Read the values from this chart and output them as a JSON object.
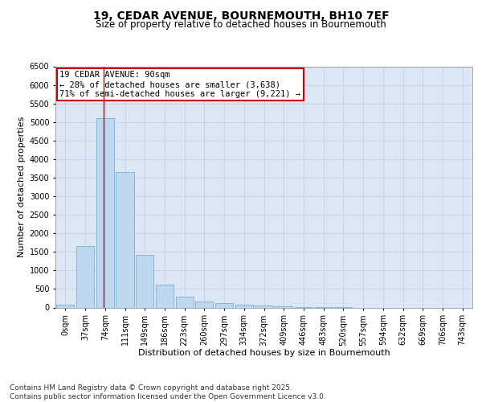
{
  "title": "19, CEDAR AVENUE, BOURNEMOUTH, BH10 7EF",
  "subtitle": "Size of property relative to detached houses in Bournemouth",
  "xlabel": "Distribution of detached houses by size in Bournemouth",
  "ylabel": "Number of detached properties",
  "bin_labels": [
    "0sqm",
    "37sqm",
    "74sqm",
    "111sqm",
    "149sqm",
    "186sqm",
    "223sqm",
    "260sqm",
    "297sqm",
    "334sqm",
    "372sqm",
    "409sqm",
    "446sqm",
    "483sqm",
    "520sqm",
    "557sqm",
    "594sqm",
    "632sqm",
    "669sqm",
    "706sqm",
    "743sqm"
  ],
  "bar_values": [
    70,
    1650,
    5100,
    3650,
    1420,
    610,
    300,
    155,
    110,
    80,
    45,
    30,
    20,
    10,
    5,
    0,
    0,
    0,
    0,
    0,
    0
  ],
  "bar_color": "#bdd7ee",
  "bar_edge_color": "#7ab0d4",
  "property_line_label": "19 CEDAR AVENUE: 90sqm",
  "annotation_line1": "← 28% of detached houses are smaller (3,638)",
  "annotation_line2": "71% of semi-detached houses are larger (9,221) →",
  "annotation_box_color": "#ffffff",
  "annotation_box_edge": "#cc0000",
  "ylim": [
    0,
    6500
  ],
  "yticks": [
    0,
    500,
    1000,
    1500,
    2000,
    2500,
    3000,
    3500,
    4000,
    4500,
    5000,
    5500,
    6000,
    6500
  ],
  "grid_color": "#c8d4e8",
  "background_color": "#dce6f5",
  "footer_line1": "Contains HM Land Registry data © Crown copyright and database right 2025.",
  "footer_line2": "Contains public sector information licensed under the Open Government Licence v3.0.",
  "title_fontsize": 10,
  "subtitle_fontsize": 8.5,
  "axis_label_fontsize": 8,
  "tick_fontsize": 7,
  "footer_fontsize": 6.5,
  "annot_fontsize": 7.5
}
